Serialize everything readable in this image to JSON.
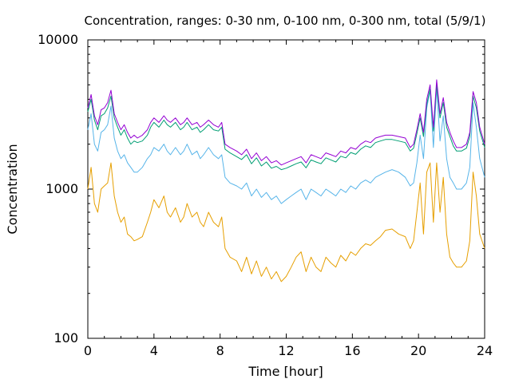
{
  "chart_data": {
    "type": "line",
    "title": "Concentration, ranges: 0-30 nm, 0-100 nm, 0-300 nm, total (5/9/1)",
    "xlabel": "Time [hour]",
    "ylabel": "Concentration",
    "xlim": [
      0,
      24
    ],
    "ylim": [
      100,
      10000
    ],
    "yscale": "log",
    "grid": false,
    "legend": "none",
    "xticks": [
      "0",
      "4",
      "8",
      "12",
      "16",
      "20",
      "24"
    ],
    "yticks": [
      "100",
      "1000",
      "10000"
    ],
    "series": [
      {
        "color": "#9400d3",
        "x": [
          0,
          0.2,
          0.4,
          0.6,
          0.8,
          1.0,
          1.2,
          1.4,
          1.6,
          1.8,
          2.0,
          2.2,
          2.4,
          2.6,
          2.8,
          3.0,
          3.3,
          3.6,
          3.8,
          4.0,
          4.3,
          4.6,
          4.8,
          5.0,
          5.3,
          5.6,
          5.8,
          6.0,
          6.3,
          6.6,
          6.8,
          7.0,
          7.3,
          7.6,
          7.9,
          8.1,
          8.3,
          8.6,
          9.0,
          9.3,
          9.6,
          9.9,
          10.2,
          10.5,
          10.8,
          11.1,
          11.4,
          11.7,
          12.0,
          12.3,
          12.6,
          12.9,
          13.2,
          13.5,
          13.8,
          14.1,
          14.4,
          14.7,
          15.0,
          15.3,
          15.6,
          15.9,
          16.2,
          16.5,
          16.8,
          17.1,
          17.4,
          17.7,
          18.0,
          18.4,
          18.8,
          19.2,
          19.5,
          19.7,
          19.9,
          20.1,
          20.3,
          20.5,
          20.7,
          20.9,
          21.1,
          21.3,
          21.5,
          21.7,
          21.9,
          22.1,
          22.3,
          22.6,
          22.9,
          23.1,
          23.3,
          23.5,
          23.7,
          24
        ],
        "y": [
          3500,
          4300,
          3100,
          2700,
          3400,
          3500,
          3800,
          4600,
          3200,
          2800,
          2500,
          2700,
          2400,
          2200,
          2300,
          2200,
          2300,
          2500,
          2800,
          3000,
          2800,
          3100,
          2900,
          2800,
          3000,
          2700,
          2800,
          3000,
          2700,
          2800,
          2600,
          2700,
          2900,
          2700,
          2600,
          2800,
          2000,
          1900,
          1800,
          1700,
          1850,
          1600,
          1750,
          1550,
          1650,
          1500,
          1550,
          1450,
          1500,
          1550,
          1600,
          1650,
          1500,
          1700,
          1650,
          1600,
          1750,
          1700,
          1650,
          1800,
          1750,
          1900,
          1850,
          2000,
          2100,
          2050,
          2200,
          2250,
          2300,
          2300,
          2250,
          2200,
          1900,
          2000,
          2500,
          3200,
          2400,
          4000,
          5000,
          2600,
          5400,
          3200,
          4100,
          2800,
          2400,
          2100,
          1900,
          1900,
          2000,
          2400,
          4500,
          3800,
          2600,
          2000
        ]
      },
      {
        "color": "#009e73",
        "x": [
          0,
          0.2,
          0.4,
          0.6,
          0.8,
          1.0,
          1.2,
          1.4,
          1.6,
          1.8,
          2.0,
          2.2,
          2.4,
          2.6,
          2.8,
          3.0,
          3.3,
          3.6,
          3.8,
          4.0,
          4.3,
          4.6,
          4.8,
          5.0,
          5.3,
          5.6,
          5.8,
          6.0,
          6.3,
          6.6,
          6.8,
          7.0,
          7.3,
          7.6,
          7.9,
          8.1,
          8.3,
          8.6,
          9.0,
          9.3,
          9.6,
          9.9,
          10.2,
          10.5,
          10.8,
          11.1,
          11.4,
          11.7,
          12.0,
          12.3,
          12.6,
          12.9,
          13.2,
          13.5,
          13.8,
          14.1,
          14.4,
          14.7,
          15.0,
          15.3,
          15.6,
          15.9,
          16.2,
          16.5,
          16.8,
          17.1,
          17.4,
          17.7,
          18.0,
          18.4,
          18.8,
          19.2,
          19.5,
          19.7,
          19.9,
          20.1,
          20.3,
          20.5,
          20.7,
          20.9,
          21.1,
          21.3,
          21.5,
          21.7,
          21.9,
          22.1,
          22.3,
          22.6,
          22.9,
          23.1,
          23.3,
          23.5,
          23.7,
          24
        ],
        "y": [
          3300,
          4000,
          2900,
          2500,
          3100,
          3200,
          3500,
          4200,
          3000,
          2600,
          2300,
          2500,
          2200,
          2000,
          2100,
          2050,
          2100,
          2300,
          2600,
          2800,
          2600,
          2900,
          2700,
          2600,
          2800,
          2500,
          2600,
          2800,
          2500,
          2600,
          2400,
          2500,
          2700,
          2500,
          2450,
          2600,
          1850,
          1750,
          1650,
          1580,
          1700,
          1480,
          1620,
          1430,
          1520,
          1380,
          1420,
          1350,
          1380,
          1430,
          1480,
          1520,
          1390,
          1570,
          1520,
          1480,
          1620,
          1570,
          1520,
          1660,
          1620,
          1760,
          1710,
          1850,
          1950,
          1900,
          2050,
          2100,
          2150,
          2150,
          2100,
          2050,
          1800,
          1880,
          2350,
          3000,
          2250,
          3700,
          4700,
          2450,
          5000,
          3000,
          3800,
          2600,
          2250,
          1950,
          1800,
          1800,
          1880,
          2250,
          4200,
          3500,
          2450,
          1900
        ]
      },
      {
        "color": "#56b4e9",
        "x": [
          0,
          0.2,
          0.4,
          0.6,
          0.8,
          1.0,
          1.2,
          1.4,
          1.6,
          1.8,
          2.0,
          2.2,
          2.4,
          2.6,
          2.8,
          3.0,
          3.3,
          3.6,
          3.8,
          4.0,
          4.3,
          4.6,
          4.8,
          5.0,
          5.3,
          5.6,
          5.8,
          6.0,
          6.3,
          6.6,
          6.8,
          7.0,
          7.3,
          7.6,
          7.9,
          8.1,
          8.3,
          8.6,
          9.0,
          9.3,
          9.6,
          9.9,
          10.2,
          10.5,
          10.8,
          11.1,
          11.4,
          11.7,
          12.0,
          12.3,
          12.6,
          12.9,
          13.2,
          13.5,
          13.8,
          14.1,
          14.4,
          14.7,
          15.0,
          15.3,
          15.6,
          15.9,
          16.2,
          16.5,
          16.8,
          17.1,
          17.4,
          17.7,
          18.0,
          18.4,
          18.8,
          19.2,
          19.5,
          19.7,
          19.9,
          20.1,
          20.3,
          20.5,
          20.7,
          20.9,
          21.1,
          21.3,
          21.5,
          21.7,
          21.9,
          22.1,
          22.3,
          22.6,
          22.9,
          23.1,
          23.3,
          23.5,
          23.7,
          24
        ],
        "y": [
          2500,
          3200,
          2000,
          1800,
          2400,
          2500,
          2700,
          3600,
          2200,
          1800,
          1600,
          1700,
          1500,
          1400,
          1300,
          1300,
          1400,
          1600,
          1700,
          1900,
          1800,
          2000,
          1800,
          1700,
          1900,
          1700,
          1800,
          2000,
          1700,
          1800,
          1600,
          1700,
          1900,
          1700,
          1600,
          1700,
          1200,
          1100,
          1050,
          1000,
          1100,
          900,
          1000,
          880,
          950,
          850,
          900,
          800,
          850,
          900,
          950,
          1000,
          850,
          1000,
          950,
          900,
          1000,
          950,
          900,
          1000,
          950,
          1050,
          1000,
          1100,
          1150,
          1100,
          1200,
          1250,
          1300,
          1350,
          1300,
          1200,
          1050,
          1100,
          1500,
          2300,
          1600,
          3500,
          4600,
          1900,
          4800,
          2100,
          3100,
          1600,
          1200,
          1100,
          1000,
          1000,
          1100,
          1400,
          3800,
          2600,
          1600,
          1200
        ]
      },
      {
        "color": "#e69f00",
        "x": [
          0,
          0.2,
          0.4,
          0.6,
          0.8,
          1.0,
          1.2,
          1.4,
          1.6,
          1.8,
          2.0,
          2.2,
          2.4,
          2.6,
          2.8,
          3.0,
          3.3,
          3.6,
          3.8,
          4.0,
          4.3,
          4.6,
          4.8,
          5.0,
          5.3,
          5.6,
          5.8,
          6.0,
          6.3,
          6.6,
          6.8,
          7.0,
          7.3,
          7.6,
          7.9,
          8.1,
          8.3,
          8.6,
          9.0,
          9.3,
          9.6,
          9.9,
          10.2,
          10.5,
          10.8,
          11.1,
          11.4,
          11.7,
          12.0,
          12.3,
          12.6,
          12.9,
          13.2,
          13.5,
          13.8,
          14.1,
          14.4,
          14.7,
          15.0,
          15.3,
          15.6,
          15.9,
          16.2,
          16.5,
          16.8,
          17.1,
          17.4,
          17.7,
          18.0,
          18.4,
          18.8,
          19.2,
          19.5,
          19.7,
          19.9,
          20.1,
          20.3,
          20.5,
          20.7,
          20.9,
          21.1,
          21.3,
          21.5,
          21.7,
          21.9,
          22.1,
          22.3,
          22.6,
          22.9,
          23.1,
          23.3,
          23.5,
          23.7,
          24
        ],
        "y": [
          1000,
          1400,
          800,
          700,
          1000,
          1050,
          1100,
          1500,
          900,
          700,
          600,
          650,
          500,
          480,
          450,
          460,
          480,
          600,
          700,
          850,
          750,
          900,
          700,
          650,
          750,
          600,
          650,
          800,
          650,
          700,
          600,
          560,
          700,
          600,
          560,
          650,
          400,
          350,
          330,
          280,
          350,
          270,
          330,
          260,
          300,
          250,
          280,
          240,
          260,
          300,
          350,
          380,
          280,
          350,
          300,
          280,
          350,
          320,
          300,
          360,
          330,
          380,
          360,
          400,
          430,
          420,
          450,
          480,
          530,
          540,
          500,
          480,
          400,
          450,
          700,
          1100,
          500,
          1300,
          1500,
          600,
          1500,
          700,
          1200,
          500,
          350,
          320,
          300,
          300,
          330,
          450,
          1300,
          900,
          500,
          400
        ]
      }
    ]
  }
}
